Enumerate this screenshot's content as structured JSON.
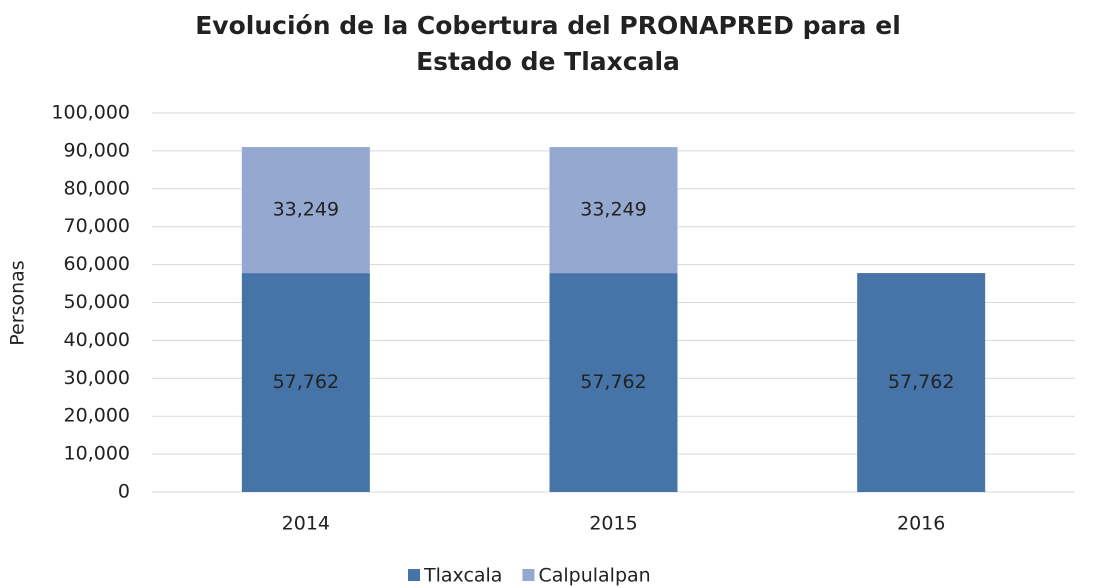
{
  "chart_data": {
    "type": "stacked_bar",
    "title": "Evolución de la Cobertura del PRONAPRED para el Estado de Tlaxcala",
    "y_label": "Personas",
    "categories": [
      "2014",
      "2015",
      "2016"
    ],
    "series": [
      {
        "name": "Tlaxcala",
        "color": "#4674a8",
        "values": [
          57762,
          57762,
          57762
        ],
        "value_labels": [
          "57,762",
          "57,762",
          "57,762"
        ]
      },
      {
        "name": "Calpulalpan",
        "color": "#95a9d0",
        "values": [
          33249,
          33249,
          null
        ],
        "value_labels": [
          "33,249",
          "33,249",
          null
        ]
      }
    ],
    "ylim": [
      0,
      100000
    ],
    "yticks": [
      0,
      {
        "value": 10000,
        "label": "10,000"
      },
      {
        "value": 20000,
        "label": "20,000"
      },
      {
        "value": 30000,
        "label": "30,000"
      },
      {
        "value": 40000,
        "label": "40,000"
      },
      {
        "value": 50000,
        "label": "50,000"
      },
      {
        "value": 60000,
        "label": "60,000"
      },
      {
        "value": 70000,
        "label": "70,000"
      },
      {
        "value": 80000,
        "label": "80,000"
      },
      {
        "value": 90000,
        "label": "90,000"
      },
      {
        "value": 100000,
        "label": "100,000"
      }
    ],
    "grid": true,
    "legend": "bottom"
  }
}
